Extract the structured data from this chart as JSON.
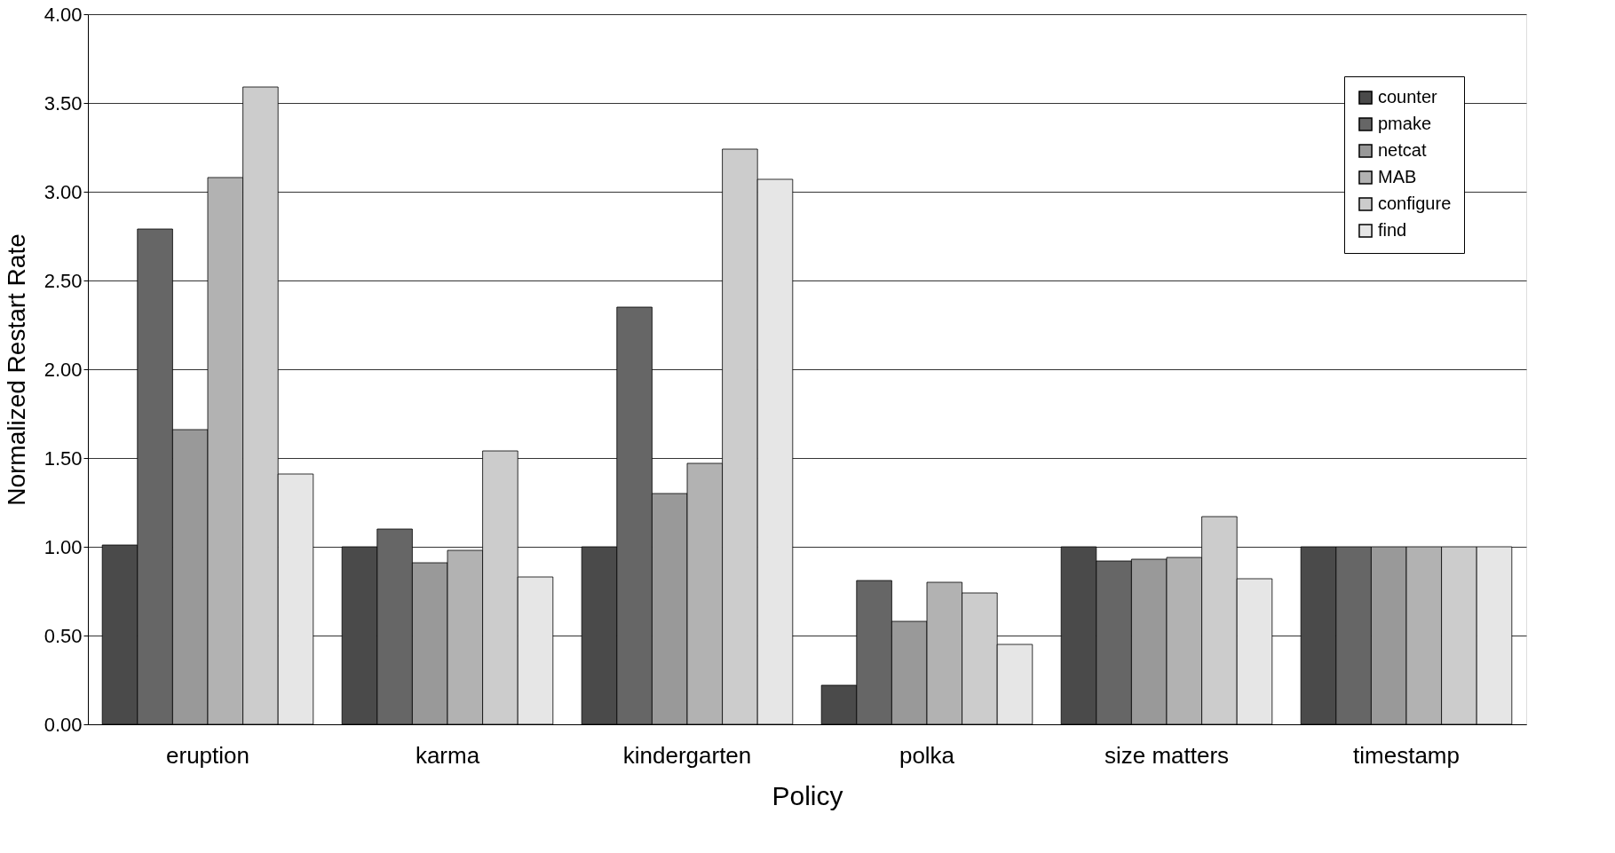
{
  "chart_data": {
    "type": "bar",
    "xlabel": "Policy",
    "ylabel": "Normalized Restart Rate",
    "categories": [
      "eruption",
      "karma",
      "kindergarten",
      "polka",
      "size matters",
      "timestamp"
    ],
    "series": [
      {
        "name": "counter",
        "color": "#4a4a4a",
        "values": [
          1.01,
          1.0,
          1.0,
          0.22,
          1.0,
          1.0
        ]
      },
      {
        "name": "pmake",
        "color": "#666666",
        "values": [
          2.79,
          1.1,
          2.35,
          0.81,
          0.92,
          1.0
        ]
      },
      {
        "name": "netcat",
        "color": "#999999",
        "values": [
          1.66,
          0.91,
          1.3,
          0.58,
          0.93,
          1.0
        ]
      },
      {
        "name": "MAB",
        "color": "#b2b2b2",
        "values": [
          3.08,
          0.98,
          1.47,
          0.8,
          0.94,
          1.0
        ]
      },
      {
        "name": "configure",
        "color": "#cccccc",
        "values": [
          3.59,
          1.54,
          3.24,
          0.74,
          1.17,
          1.0
        ]
      },
      {
        "name": "find",
        "color": "#e6e6e6",
        "values": [
          1.41,
          0.83,
          3.07,
          0.45,
          0.82,
          1.0
        ]
      }
    ],
    "ylim": [
      0,
      4
    ],
    "yticks": [
      {
        "value": 0,
        "label": "0.00"
      },
      {
        "value": 0.5,
        "label": "0.50"
      },
      {
        "value": 1,
        "label": "1.00"
      },
      {
        "value": 1.5,
        "label": "1.50"
      },
      {
        "value": 2,
        "label": "2.00"
      },
      {
        "value": 2.5,
        "label": "2.50"
      },
      {
        "value": 3,
        "label": "3.00"
      },
      {
        "value": 3.5,
        "label": "3.50"
      },
      {
        "value": 4,
        "label": "4.00"
      }
    ],
    "grid": "y",
    "legend": "top right"
  }
}
